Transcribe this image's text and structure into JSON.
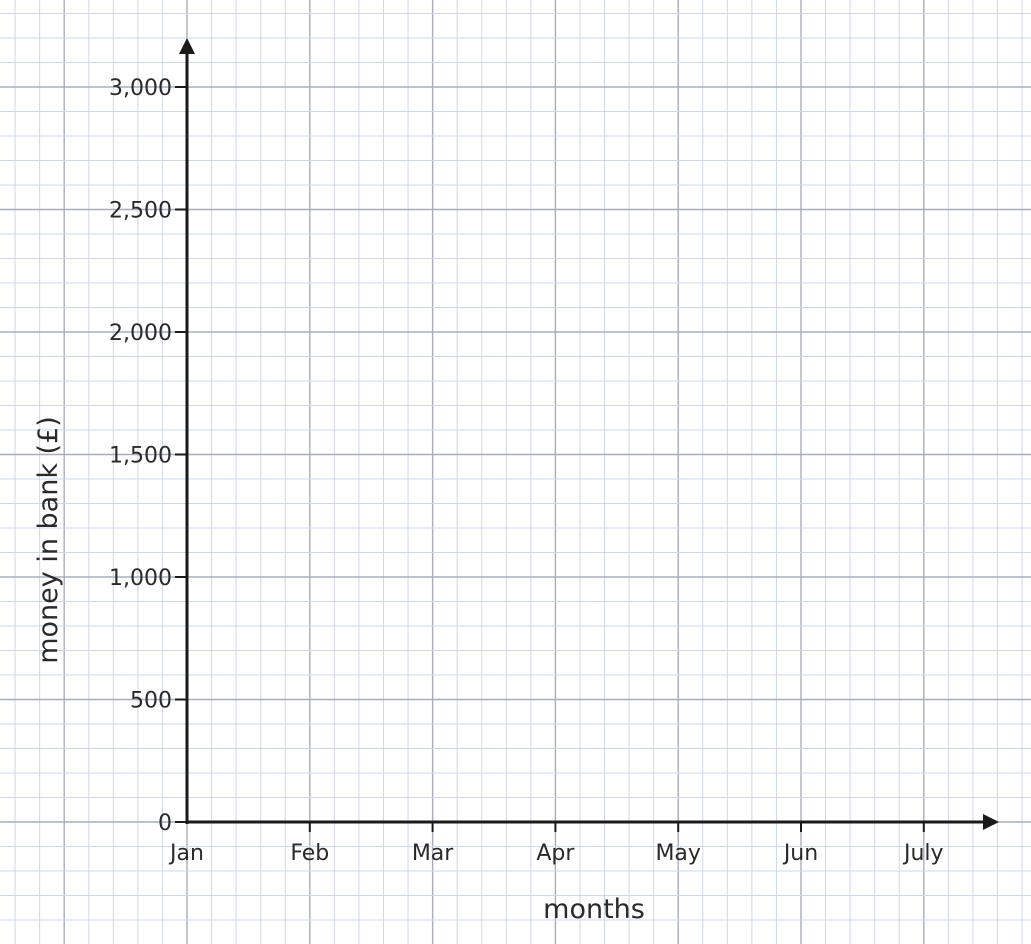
{
  "chart_data": {
    "type": "line",
    "title": "",
    "xlabel": "months",
    "ylabel": "money in bank (£)",
    "categories": [
      "Jan",
      "Feb",
      "Mar",
      "Apr",
      "May",
      "Jun",
      "July"
    ],
    "ytick_labels": [
      "0",
      "500",
      "1,000",
      "1,500",
      "2,000",
      "2,500",
      "3,000"
    ],
    "yticks": [
      0,
      500,
      1000,
      1500,
      2000,
      2500,
      3000
    ],
    "ylim": [
      0,
      3000
    ],
    "series": [],
    "grid": true,
    "colors": {
      "axis": "#1a1a1a",
      "grid_major": "#a9adbb",
      "grid_minor": "#cfd7e8"
    }
  }
}
